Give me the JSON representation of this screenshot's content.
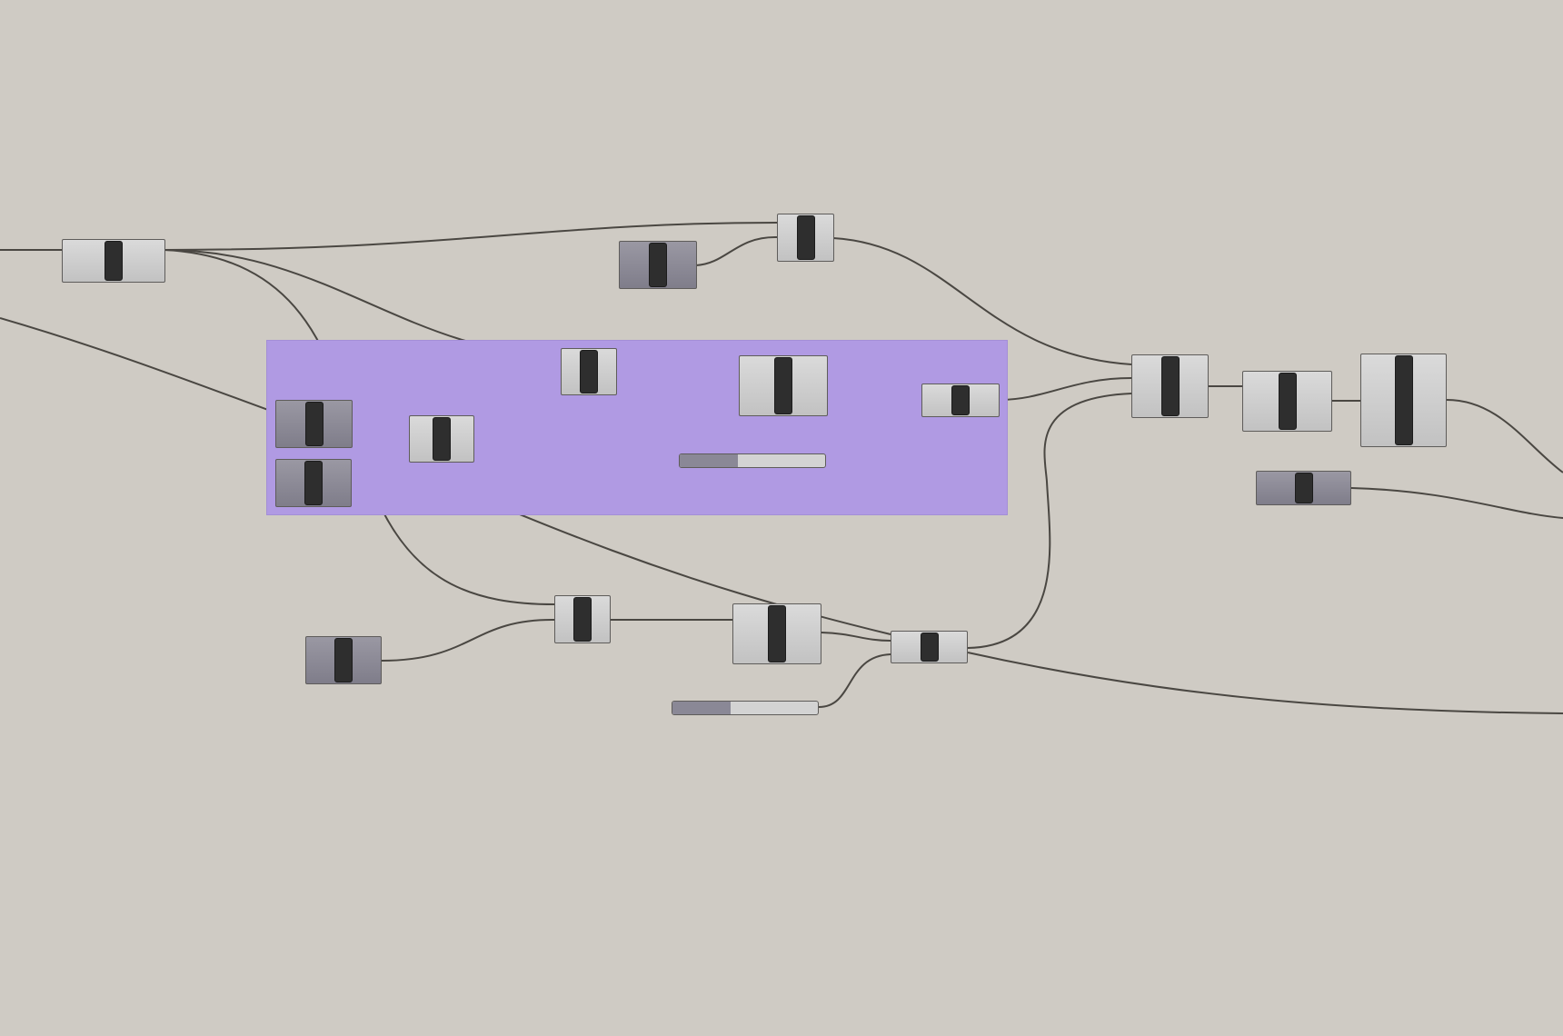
{
  "canvas": {
    "background_color": "#cfcbc4",
    "wire_color": "#4a4742",
    "group_color": "#b09ae3"
  },
  "groups": [
    {
      "name": "purple-group"
    }
  ],
  "nodes": [
    {
      "name": "component-node-1",
      "style": "light"
    },
    {
      "name": "component-node-2",
      "style": "dark"
    },
    {
      "name": "component-node-3",
      "style": "light"
    },
    {
      "name": "component-node-4",
      "style": "dark"
    },
    {
      "name": "component-node-5",
      "style": "dark"
    },
    {
      "name": "component-node-6",
      "style": "light"
    },
    {
      "name": "component-node-7",
      "style": "light"
    },
    {
      "name": "component-node-8",
      "style": "light"
    },
    {
      "name": "component-node-9",
      "style": "light"
    },
    {
      "name": "component-node-10",
      "style": "light"
    },
    {
      "name": "component-node-11",
      "style": "light"
    },
    {
      "name": "component-node-12",
      "style": "light"
    },
    {
      "name": "component-node-13",
      "style": "dark"
    },
    {
      "name": "component-node-14",
      "style": "dark"
    },
    {
      "name": "component-node-15",
      "style": "light"
    },
    {
      "name": "component-node-16",
      "style": "light"
    },
    {
      "name": "component-node-17",
      "style": "light"
    }
  ],
  "sliders": [
    {
      "name": "number-slider-1",
      "value_fraction": 0.4
    },
    {
      "name": "number-slider-2",
      "value_fraction": 0.4
    }
  ]
}
